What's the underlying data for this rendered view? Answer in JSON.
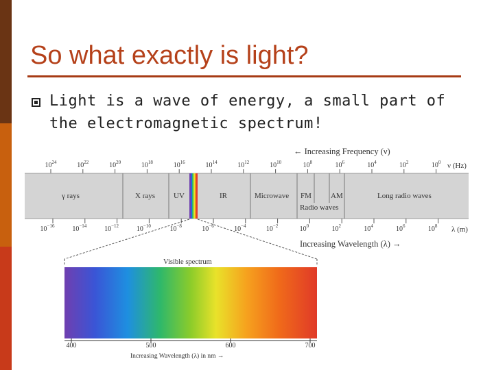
{
  "slide": {
    "title": "So what exactly is light?",
    "bullet": "Light is a wave of energy, a small part of the electromagnetic spectrum!"
  },
  "colors": {
    "title": "#b5411a",
    "sidebar_top": "#6a3414",
    "sidebar_mid": "#c8600e",
    "sidebar_bottom": "#c83a1a"
  },
  "diagram": {
    "frequency_label": "← Increasing Frequency (ν)",
    "frequency_unit": "ν (Hz)",
    "frequency_ticks": [
      {
        "base": "10",
        "exp": "24"
      },
      {
        "base": "10",
        "exp": "22"
      },
      {
        "base": "10",
        "exp": "20"
      },
      {
        "base": "10",
        "exp": "18"
      },
      {
        "base": "10",
        "exp": "16"
      },
      {
        "base": "10",
        "exp": "14"
      },
      {
        "base": "10",
        "exp": "12"
      },
      {
        "base": "10",
        "exp": "10"
      },
      {
        "base": "10",
        "exp": "8"
      },
      {
        "base": "10",
        "exp": "6"
      },
      {
        "base": "10",
        "exp": "4"
      },
      {
        "base": "10",
        "exp": "2"
      },
      {
        "base": "10",
        "exp": "0"
      }
    ],
    "bands": [
      "γ rays",
      "X rays",
      "UV",
      "IR",
      "Microwave",
      "FM",
      "AM",
      "Long radio waves"
    ],
    "radio_label": "Radio waves",
    "wavelength_unit": "λ (m)",
    "wavelength_ticks": [
      {
        "base": "10",
        "exp": "−16"
      },
      {
        "base": "10",
        "exp": "−14"
      },
      {
        "base": "10",
        "exp": "−12"
      },
      {
        "base": "10",
        "exp": "−10"
      },
      {
        "base": "10",
        "exp": "−8"
      },
      {
        "base": "10",
        "exp": "−6"
      },
      {
        "base": "10",
        "exp": "−4"
      },
      {
        "base": "10",
        "exp": "−2"
      },
      {
        "base": "10",
        "exp": "0"
      },
      {
        "base": "10",
        "exp": "2"
      },
      {
        "base": "10",
        "exp": "4"
      },
      {
        "base": "10",
        "exp": "6"
      },
      {
        "base": "10",
        "exp": "8"
      }
    ],
    "wavelength_label": "Increasing Wavelength (λ) →",
    "visible_title": "Visible spectrum",
    "visible_ticks": [
      "400",
      "500",
      "600",
      "700"
    ],
    "visible_axis_label": "Increasing Wavelength (λ) in nm →"
  }
}
